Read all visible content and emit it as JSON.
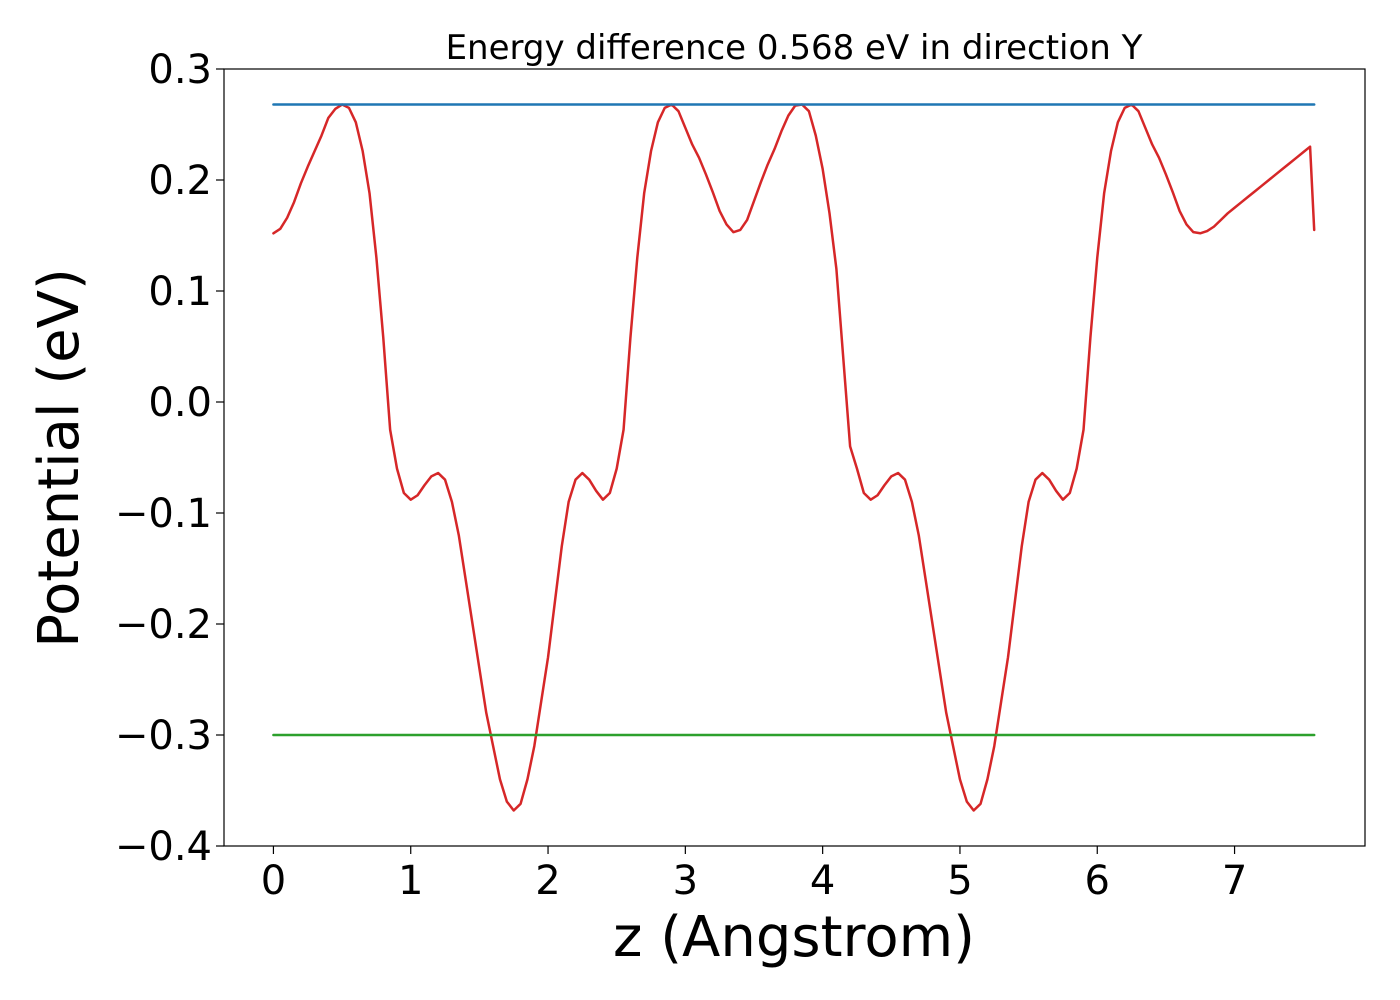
{
  "chart_data": {
    "type": "line",
    "title": "Energy difference 0.568 eV in direction Y",
    "xlabel": "z (Angstrom)",
    "ylabel": "Potential (eV)",
    "xlim": [
      -0.36,
      7.95
    ],
    "ylim": [
      -0.4,
      0.3
    ],
    "xticks": [
      0,
      1,
      2,
      3,
      4,
      5,
      6,
      7
    ],
    "xtick_labels": [
      "0",
      "1",
      "2",
      "3",
      "4",
      "5",
      "6",
      "7"
    ],
    "yticks": [
      0.3,
      0.2,
      0.1,
      0.0,
      -0.1,
      -0.2,
      -0.3,
      -0.4
    ],
    "ytick_labels": [
      "0.3",
      "0.2",
      "0.1",
      "0.0",
      "−0.1",
      "−0.2",
      "−0.3",
      "−0.4"
    ],
    "grid": false,
    "legend": "none",
    "series": [
      {
        "color": "#d62728",
        "x": [
          0,
          0.05,
          0.1,
          0.15,
          0.2,
          0.25,
          0.3,
          0.35,
          0.4,
          0.45,
          0.5,
          0.55,
          0.6,
          0.65,
          0.7,
          0.75,
          0.8,
          0.85,
          0.9,
          0.95,
          1.0,
          1.05,
          1.1,
          1.15,
          1.2,
          1.25,
          1.3,
          1.35,
          1.4,
          1.45,
          1.5,
          1.55,
          1.6,
          1.65,
          1.7,
          1.75,
          1.8,
          1.85,
          1.9,
          1.95,
          2.0,
          2.05,
          2.1,
          2.15,
          2.2,
          2.25,
          2.3,
          2.35,
          2.4,
          2.45,
          2.5,
          2.55,
          2.6,
          2.65,
          2.7,
          2.75,
          2.8,
          2.85,
          2.9,
          2.95,
          3.0,
          3.05,
          3.1,
          3.15,
          3.2,
          3.25,
          3.3,
          3.35,
          3.4,
          3.45,
          3.5,
          3.55,
          3.6,
          3.65,
          3.7,
          3.75,
          3.8,
          3.85,
          3.9,
          3.95,
          4.0,
          4.05,
          4.1,
          4.15,
          4.2,
          4.25,
          4.3,
          4.35,
          4.4,
          4.45,
          4.5,
          4.55,
          4.6,
          4.65,
          4.7,
          4.75,
          4.8,
          4.85,
          4.9,
          4.95,
          5.0,
          5.05,
          5.1,
          5.15,
          5.2,
          5.25,
          5.3,
          5.35,
          5.4,
          5.45,
          5.5,
          5.55,
          5.6,
          5.65,
          5.7,
          5.75,
          5.8,
          5.85,
          5.9,
          5.95,
          6.0,
          6.05,
          6.1,
          6.15,
          6.2,
          6.25,
          6.3,
          6.35,
          6.4,
          6.45,
          6.5,
          6.55,
          6.6,
          6.65,
          6.7,
          6.75,
          6.8,
          6.85,
          6.9,
          6.95,
          7.0,
          7.05,
          7.1,
          7.15,
          7.2,
          7.25,
          7.3,
          7.35,
          7.4,
          7.45,
          7.5,
          7.55,
          7.58
        ],
        "y": [
          0.152,
          0.156,
          0.166,
          0.18,
          0.197,
          0.212,
          0.226,
          0.24,
          0.256,
          0.264,
          0.268,
          0.265,
          0.252,
          0.226,
          0.188,
          0.13,
          0.058,
          -0.025,
          -0.06,
          -0.082,
          -0.088,
          -0.084,
          -0.075,
          -0.067,
          -0.064,
          -0.07,
          -0.09,
          -0.12,
          -0.16,
          -0.2,
          -0.24,
          -0.28,
          -0.31,
          -0.34,
          -0.36,
          -0.368,
          -0.362,
          -0.34,
          -0.31,
          -0.27,
          -0.23,
          -0.18,
          -0.13,
          -0.09,
          -0.07,
          -0.064,
          -0.07,
          -0.08,
          -0.088,
          -0.082,
          -0.06,
          -0.025,
          0.058,
          0.13,
          0.188,
          0.226,
          0.252,
          0.265,
          0.268,
          0.262,
          0.247,
          0.232,
          0.22,
          0.205,
          0.189,
          0.172,
          0.16,
          0.153,
          0.155,
          0.164,
          0.181,
          0.198,
          0.214,
          0.228,
          0.244,
          0.258,
          0.267,
          0.268,
          0.262,
          0.24,
          0.21,
          0.17,
          0.12,
          0.04,
          -0.04,
          -0.06,
          -0.082,
          -0.088,
          -0.084,
          -0.075,
          -0.067,
          -0.064,
          -0.07,
          -0.09,
          -0.12,
          -0.16,
          -0.2,
          -0.24,
          -0.28,
          -0.31,
          -0.34,
          -0.36,
          -0.368,
          -0.362,
          -0.34,
          -0.31,
          -0.27,
          -0.23,
          -0.18,
          -0.13,
          -0.09,
          -0.07,
          -0.064,
          -0.07,
          -0.08,
          -0.088,
          -0.082,
          -0.06,
          -0.025,
          0.058,
          0.13,
          0.188,
          0.226,
          0.252,
          0.265,
          0.268,
          0.262,
          0.247,
          0.232,
          0.22,
          0.205,
          0.189,
          0.172,
          0.16,
          0.153,
          0.152,
          0.154,
          0.158,
          0.164,
          0.17,
          0.175,
          0.18,
          0.185,
          0.19,
          0.195,
          0.2,
          0.205,
          0.21,
          0.215,
          0.22,
          0.225,
          0.23,
          0.155
        ]
      },
      {
        "color": "#1f77b4",
        "x": [
          0,
          7.58
        ],
        "y": [
          0.268,
          0.268
        ]
      },
      {
        "color": "#2ca02c",
        "x": [
          0,
          7.58
        ],
        "y": [
          -0.3,
          -0.3
        ]
      }
    ]
  }
}
